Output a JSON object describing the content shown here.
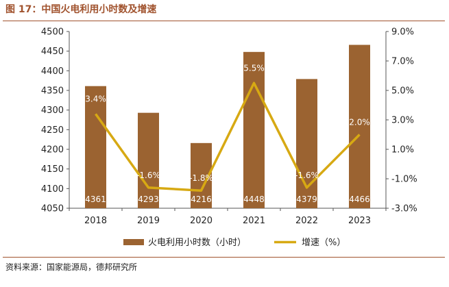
{
  "header": {
    "title": "图 17：中国火电利用小时数及增速"
  },
  "footer": {
    "source": "资料来源：国家能源局，德邦研究所"
  },
  "colors": {
    "bar": "#9b6331",
    "line": "#d7a913",
    "accent": "#a0522d"
  },
  "chart_data": {
    "type": "bar",
    "categories": [
      "2018",
      "2019",
      "2020",
      "2021",
      "2022",
      "2023"
    ],
    "series": [
      {
        "name": "火电利用小时数（小时）",
        "type": "bar",
        "axis": "left",
        "values": [
          4361,
          4293,
          4216,
          4448,
          4379,
          4466
        ],
        "labels": [
          "4361",
          "4293",
          "4216",
          "4448",
          "4379",
          "4466"
        ]
      },
      {
        "name": "增速（%）",
        "type": "line",
        "axis": "right",
        "values": [
          3.4,
          -1.6,
          -1.8,
          5.5,
          -1.6,
          2.0
        ],
        "labels": [
          "3.4%",
          "-1.6%",
          "-1.8%",
          "5.5%",
          "-1.6%",
          "2.0%"
        ]
      }
    ],
    "ylim": [
      4050,
      4500
    ],
    "yticks": [
      "4050",
      "4100",
      "4150",
      "4200",
      "4250",
      "4300",
      "4350",
      "4400",
      "4450",
      "4500"
    ],
    "y2lim": [
      -3.0,
      9.0
    ],
    "y2ticks": [
      "-3.0%",
      "-1.0%",
      "1.0%",
      "3.0%",
      "5.0%",
      "7.0%",
      "9.0%"
    ],
    "legend": {
      "position": "bottom",
      "items": [
        "火电利用小时数（小时）",
        "增速（%）"
      ]
    },
    "grid": false
  }
}
